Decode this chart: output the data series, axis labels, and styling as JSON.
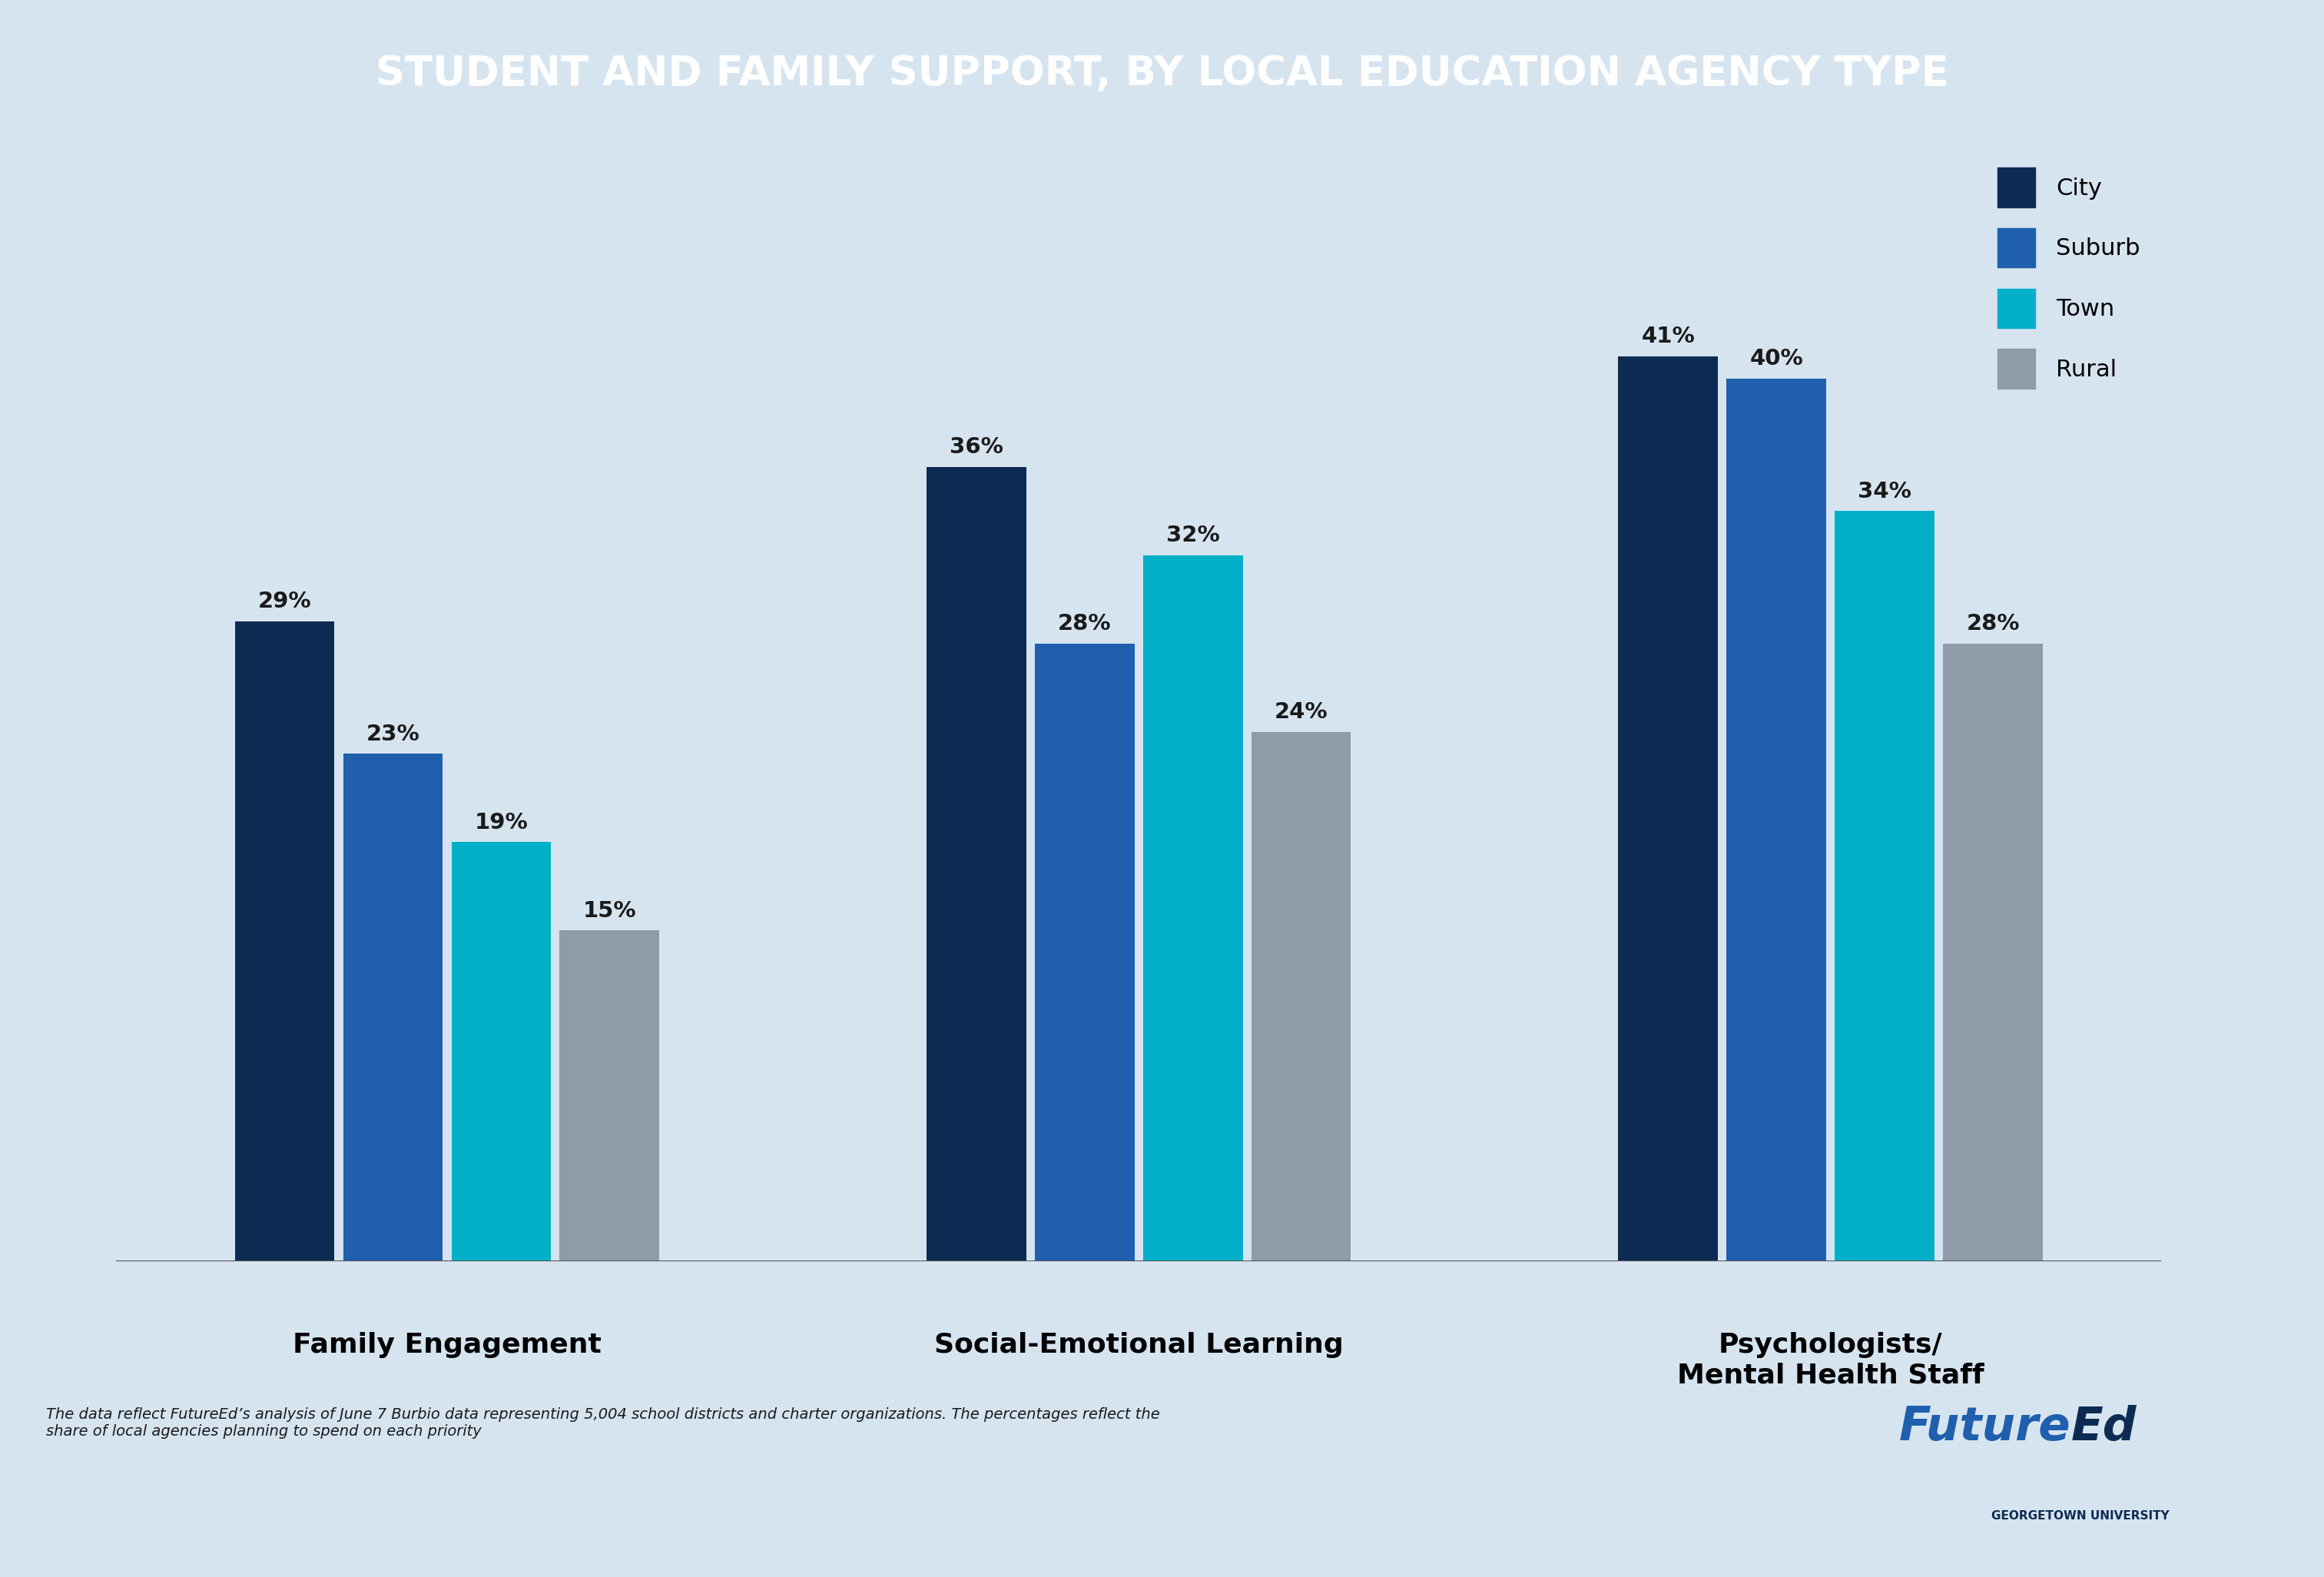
{
  "title": "STUDENT AND FAMILY SUPPORT, BY LOCAL EDUCATION AGENCY TYPE",
  "title_bg_color": "#0d2b52",
  "title_text_color": "#ffffff",
  "chart_bg_color": "#d6e4f0",
  "category_labels": [
    "Family Engagement",
    "Social-Emotional Learning",
    "Psychologists/\nMental Health Staff"
  ],
  "series": [
    {
      "name": "City",
      "color": "#0d2b52",
      "values": [
        29,
        36,
        41
      ]
    },
    {
      "name": "Suburb",
      "color": "#1f5fad",
      "values": [
        23,
        28,
        40
      ]
    },
    {
      "name": "Town",
      "color": "#00b0c8",
      "values": [
        19,
        32,
        34
      ]
    },
    {
      "name": "Rural",
      "color": "#8e9ba8",
      "values": [
        15,
        24,
        28
      ]
    }
  ],
  "ylim": [
    0,
    50
  ],
  "bar_width": 0.18,
  "footnote": "The data reflect FutureEd’s analysis of June 7 Burbio data representing 5,004 school districts and charter organizations. The percentages reflect the\nshare of local agencies planning to spend on each priority",
  "footnote_fontsize": 14,
  "legend_fontsize": 22,
  "value_fontsize": 21,
  "category_fontsize": 26,
  "futureed_blue_color": "#1f5fad",
  "futureed_dark_color": "#0d2b52"
}
